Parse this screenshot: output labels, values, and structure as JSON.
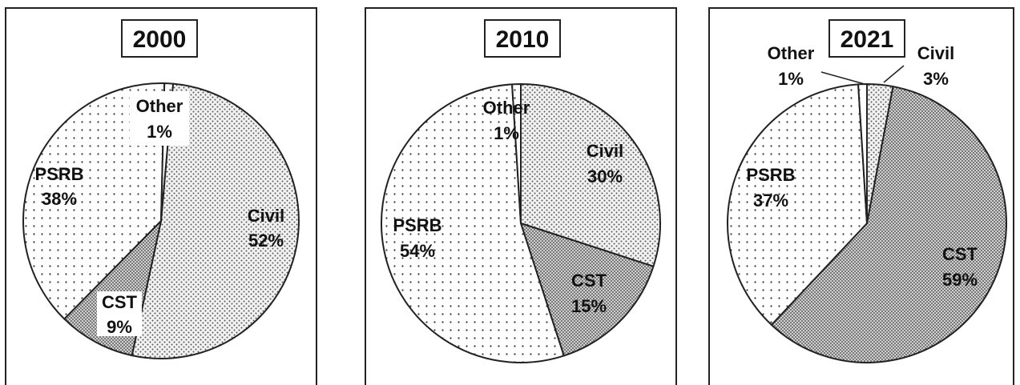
{
  "chart_data": [
    {
      "type": "pie",
      "title": "2000",
      "slices": [
        {
          "label": "Civil",
          "value": 52,
          "value_label": "52%",
          "pattern": "fine"
        },
        {
          "label": "CST",
          "value": 9,
          "value_label": "9%",
          "pattern": "dense"
        },
        {
          "label": "PSRB",
          "value": 38,
          "value_label": "38%",
          "pattern": "sparse"
        },
        {
          "label": "Other",
          "value": 1,
          "value_label": "1%",
          "pattern": "sparse"
        }
      ]
    },
    {
      "type": "pie",
      "title": "2010",
      "slices": [
        {
          "label": "Civil",
          "value": 30,
          "value_label": "30%",
          "pattern": "fine"
        },
        {
          "label": "CST",
          "value": 15,
          "value_label": "15%",
          "pattern": "dense"
        },
        {
          "label": "PSRB",
          "value": 54,
          "value_label": "54%",
          "pattern": "sparse"
        },
        {
          "label": "Other",
          "value": 1,
          "value_label": "1%",
          "pattern": "sparse"
        }
      ]
    },
    {
      "type": "pie",
      "title": "2021",
      "slices": [
        {
          "label": "Civil",
          "value": 3,
          "value_label": "3%",
          "pattern": "fine"
        },
        {
          "label": "CST",
          "value": 59,
          "value_label": "59%",
          "pattern": "dense"
        },
        {
          "label": "PSRB",
          "value": 37,
          "value_label": "37%",
          "pattern": "sparse"
        },
        {
          "label": "Other",
          "value": 1,
          "value_label": "1%",
          "pattern": "sparse"
        }
      ]
    }
  ]
}
